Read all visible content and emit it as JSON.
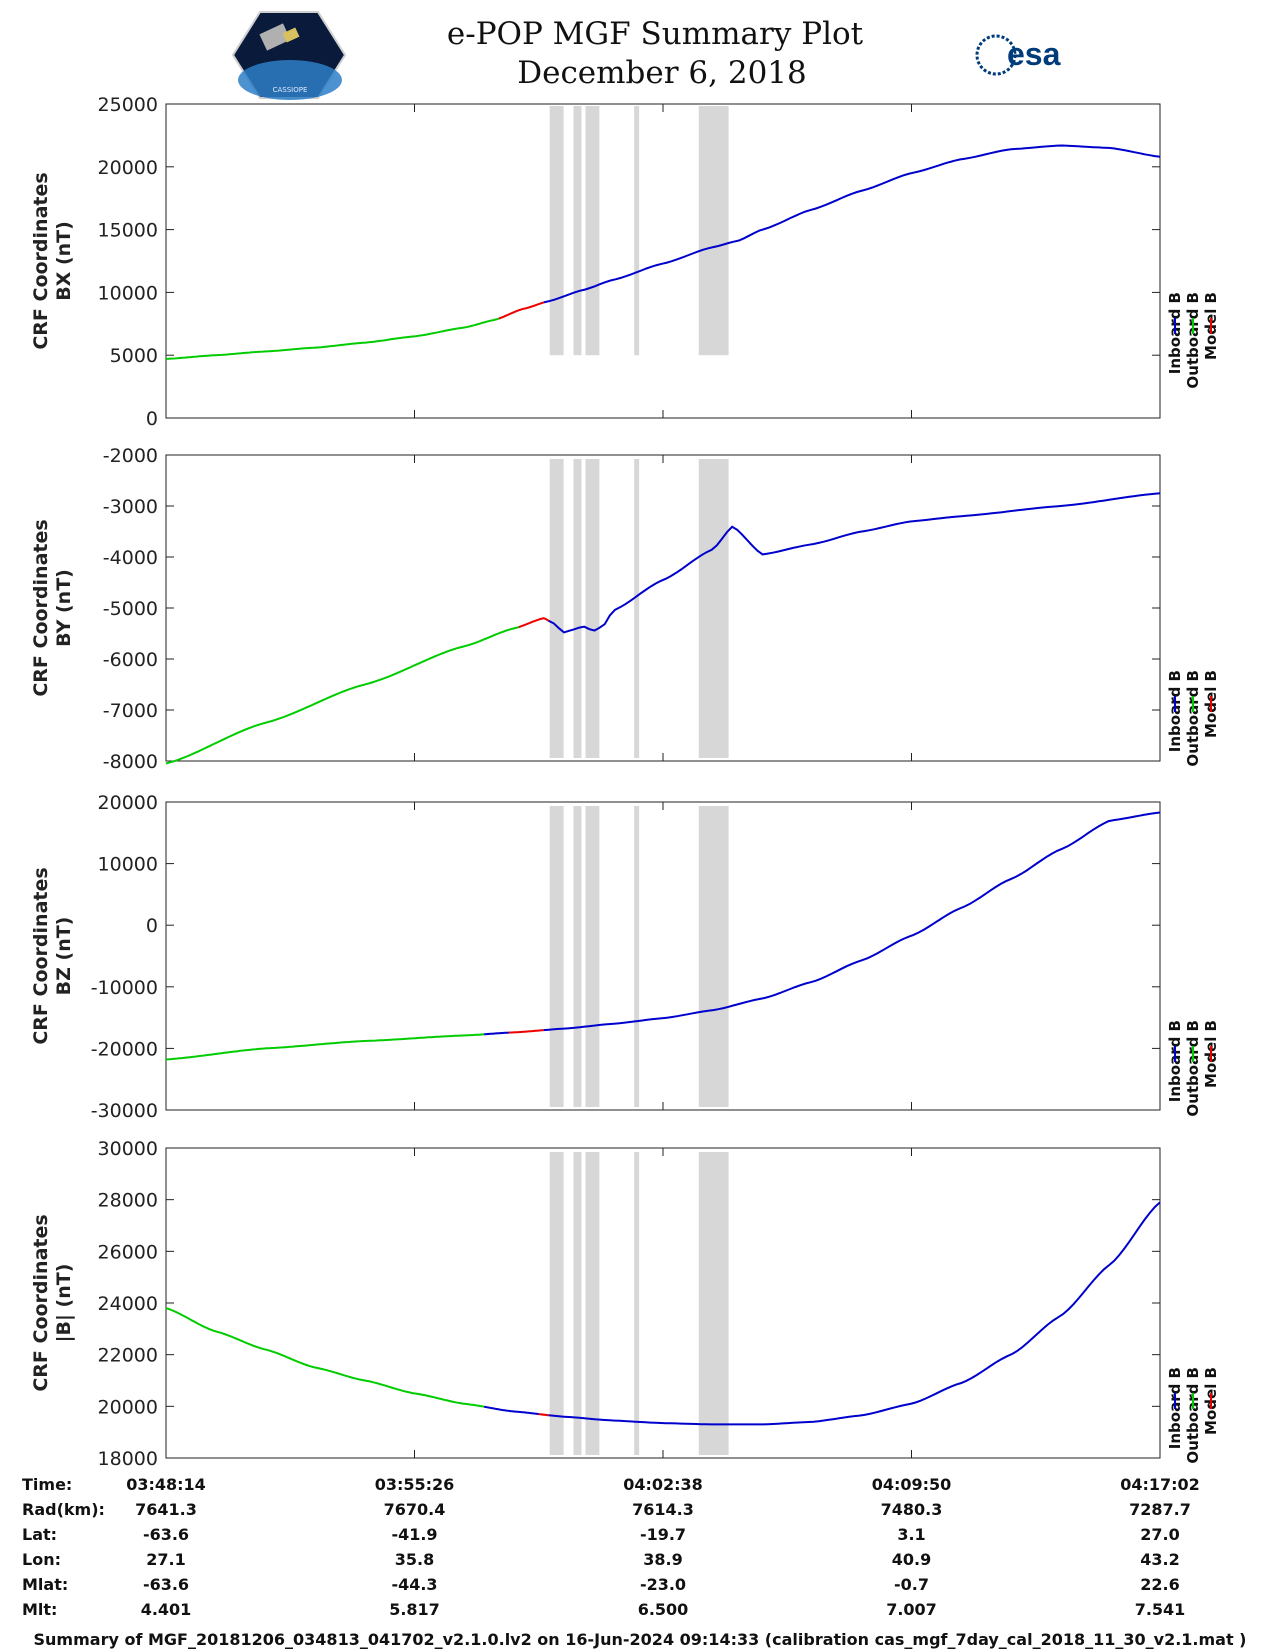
{
  "header": {
    "title": "e-POP MGF Summary Plot",
    "date": "December 6, 2018",
    "esa_logo": "esa",
    "cassiope_logo": "CASSIOPE"
  },
  "colors": {
    "inboard": "#0000cc",
    "outboard": "#00cc00",
    "model": "#ee0000",
    "shade": "#d7d7d7"
  },
  "legend": {
    "inboard": "Inboard B",
    "outboard": "Outboard B",
    "model": "Model B"
  },
  "chart_data": [
    {
      "type": "line",
      "id": "bx",
      "ylabel_line1": "CRF Coordinates",
      "ylabel_line2": "BX (nT)",
      "ylim": [
        0,
        25000
      ],
      "yticks": [
        "0",
        "5000",
        "10000",
        "15000",
        "20000",
        "25000"
      ],
      "x_fraction": [
        0,
        0.05,
        0.1,
        0.15,
        0.2,
        0.25,
        0.3,
        0.33,
        0.36,
        0.385,
        0.42,
        0.45,
        0.5,
        0.55,
        0.575,
        0.6,
        0.65,
        0.7,
        0.75,
        0.8,
        0.85,
        0.9,
        0.95,
        1.0
      ],
      "values": [
        4700,
        5000,
        5300,
        5600,
        6000,
        6500,
        7200,
        7800,
        8700,
        9300,
        10200,
        11000,
        12300,
        13600,
        14100,
        15000,
        16600,
        18100,
        19500,
        20600,
        21400,
        21700,
        21500,
        20800
      ],
      "segments": [
        [
          0,
          0.335,
          "outboard"
        ],
        [
          0.335,
          0.38,
          "model"
        ],
        [
          0.38,
          1.0,
          "inboard"
        ]
      ],
      "shade_top": 1.0
    },
    {
      "type": "line",
      "id": "by",
      "ylabel_line1": "CRF Coordinates",
      "ylabel_line2": "BY (nT)",
      "ylim": [
        -8000,
        -2000
      ],
      "yticks": [
        "-8000",
        "-7000",
        "-6000",
        "-5000",
        "-4000",
        "-3000",
        "-2000"
      ],
      "x_fraction": [
        0,
        0.1,
        0.2,
        0.3,
        0.35,
        0.38,
        0.39,
        0.4,
        0.41,
        0.42,
        0.43,
        0.44,
        0.45,
        0.5,
        0.55,
        0.57,
        0.6,
        0.65,
        0.7,
        0.75,
        0.8,
        0.9,
        1.0
      ],
      "values": [
        -8050,
        -7250,
        -6500,
        -5750,
        -5400,
        -5200,
        -5300,
        -5480,
        -5420,
        -5360,
        -5450,
        -5350,
        -5050,
        -4450,
        -3850,
        -3400,
        -3950,
        -3750,
        -3500,
        -3300,
        -3200,
        -3000,
        -2750
      ],
      "segments": [
        [
          0,
          0.355,
          "outboard"
        ],
        [
          0.355,
          0.385,
          "model"
        ],
        [
          0.385,
          1.0,
          "inboard"
        ]
      ],
      "shade_top": 1.0
    },
    {
      "type": "line",
      "id": "bz",
      "ylabel_line1": "CRF Coordinates",
      "ylabel_line2": "BZ (nT)",
      "ylim": [
        -30000,
        20000
      ],
      "yticks": [
        "-30000",
        "-20000",
        "-10000",
        "0",
        "10000",
        "20000"
      ],
      "x_fraction": [
        0,
        0.1,
        0.2,
        0.3,
        0.35,
        0.4,
        0.45,
        0.5,
        0.55,
        0.6,
        0.65,
        0.7,
        0.75,
        0.8,
        0.85,
        0.9,
        0.95,
        1.0
      ],
      "values": [
        -21800,
        -20000,
        -18800,
        -17900,
        -17400,
        -16800,
        -16000,
        -15100,
        -13800,
        -11900,
        -9200,
        -5700,
        -1700,
        2800,
        7500,
        12300,
        17000,
        18300
      ],
      "segments": [
        [
          0,
          0.32,
          "outboard"
        ],
        [
          0.32,
          0.345,
          "inboard"
        ],
        [
          0.345,
          0.38,
          "model"
        ],
        [
          0.38,
          1.0,
          "inboard"
        ]
      ],
      "shade_top": 1.0
    },
    {
      "type": "line",
      "id": "bmag",
      "ylabel_line1": "CRF Coordinates",
      "ylabel_line2": "|B| (nT)",
      "ylim": [
        18000,
        30000
      ],
      "yticks": [
        "18000",
        "20000",
        "22000",
        "24000",
        "26000",
        "28000",
        "30000"
      ],
      "x_fraction": [
        0,
        0.05,
        0.1,
        0.15,
        0.2,
        0.25,
        0.3,
        0.35,
        0.4,
        0.45,
        0.5,
        0.55,
        0.6,
        0.65,
        0.7,
        0.75,
        0.8,
        0.85,
        0.9,
        0.95,
        1.0
      ],
      "values": [
        23800,
        22900,
        22200,
        21500,
        21000,
        20500,
        20100,
        19800,
        19600,
        19450,
        19350,
        19300,
        19300,
        19400,
        19650,
        20100,
        20900,
        22000,
        23500,
        25500,
        27900
      ],
      "segments": [
        [
          0,
          0.32,
          "outboard"
        ],
        [
          0.32,
          0.375,
          "inboard"
        ],
        [
          0.375,
          0.385,
          "model"
        ],
        [
          0.385,
          1.0,
          "inboard"
        ]
      ],
      "shade_top": 1.0
    }
  ],
  "shaded_intervals": [
    [
      0.386,
      0.4
    ],
    [
      0.41,
      0.418
    ],
    [
      0.422,
      0.436
    ],
    [
      0.471,
      0.476
    ],
    [
      0.536,
      0.566
    ]
  ],
  "ephemeris": {
    "labels": [
      "Time:",
      "Rad(km):",
      "Lat:",
      "Lon:",
      "Mlat:",
      "Mlt:"
    ],
    "columns": [
      [
        "03:48:14",
        "7641.3",
        "-63.6",
        "27.1",
        "-63.6",
        "4.401"
      ],
      [
        "03:55:26",
        "7670.4",
        "-41.9",
        "35.8",
        "-44.3",
        "5.817"
      ],
      [
        "04:02:38",
        "7614.3",
        "-19.7",
        "38.9",
        "-23.0",
        "6.500"
      ],
      [
        "04:09:50",
        "7480.3",
        "3.1",
        "40.9",
        "-0.7",
        "7.007"
      ],
      [
        "04:17:02",
        "7287.7",
        "27.0",
        "43.2",
        "22.6",
        "7.541"
      ]
    ]
  },
  "footer": "Summary of MGF_20181206_034813_041702_v2.1.0.lv2 on 16-Jun-2024 09:14:33 (calibration cas_mgf_7day_cal_2018_11_30_v2.1.mat )"
}
